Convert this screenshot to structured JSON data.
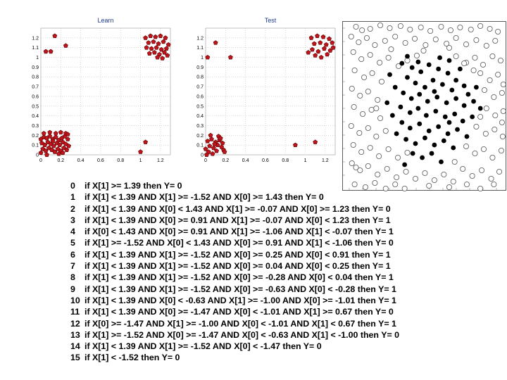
{
  "chart_data": [
    {
      "type": "scatter",
      "title": "Learn",
      "xlim": [
        0,
        1.3
      ],
      "ylim": [
        0,
        1.3
      ],
      "xticks": [
        "0",
        "0.2",
        "0.4",
        "0.6",
        "0.8",
        "1",
        "1.2"
      ],
      "yticks": [
        "0",
        "0.1",
        "0.2",
        "0.3",
        "0.4",
        "0.5",
        "0.6",
        "0.7",
        "0.8",
        "0.9",
        "1",
        "1.1",
        "1.2"
      ],
      "grid": true,
      "series": [
        {
          "color": "#c0141c",
          "points": [
            [
              0.14,
              1.22
            ],
            [
              0.05,
              1.06
            ],
            [
              0.1,
              1.06
            ],
            [
              0.25,
              1.12
            ],
            [
              1.05,
              1.2
            ],
            [
              1.1,
              1.22
            ],
            [
              1.15,
              1.21
            ],
            [
              1.2,
              1.22
            ],
            [
              1.25,
              1.2
            ],
            [
              1.08,
              1.15
            ],
            [
              1.13,
              1.16
            ],
            [
              1.18,
              1.14
            ],
            [
              1.23,
              1.16
            ],
            [
              1.28,
              1.13
            ],
            [
              1.06,
              1.1
            ],
            [
              1.11,
              1.09
            ],
            [
              1.16,
              1.1
            ],
            [
              1.21,
              1.08
            ],
            [
              1.26,
              1.09
            ],
            [
              1.09,
              1.04
            ],
            [
              1.14,
              1.05
            ],
            [
              1.19,
              1.03
            ],
            [
              1.24,
              1.05
            ],
            [
              1.17,
              1.0
            ],
            [
              1.22,
              0.99
            ],
            [
              1.27,
              1.02
            ],
            [
              0.0,
              0.16
            ],
            [
              0.03,
              0.18
            ],
            [
              0.06,
              0.17
            ],
            [
              0.09,
              0.19
            ],
            [
              0.12,
              0.16
            ],
            [
              0.15,
              0.18
            ],
            [
              0.18,
              0.15
            ],
            [
              0.21,
              0.17
            ],
            [
              0.24,
              0.19
            ],
            [
              0.27,
              0.16
            ],
            [
              0.01,
              0.12
            ],
            [
              0.04,
              0.1
            ],
            [
              0.07,
              0.13
            ],
            [
              0.1,
              0.11
            ],
            [
              0.13,
              0.09
            ],
            [
              0.16,
              0.12
            ],
            [
              0.19,
              0.1
            ],
            [
              0.22,
              0.13
            ],
            [
              0.25,
              0.11
            ],
            [
              0.28,
              0.09
            ],
            [
              0.02,
              0.06
            ],
            [
              0.05,
              0.04
            ],
            [
              0.08,
              0.07
            ],
            [
              0.11,
              0.05
            ],
            [
              0.14,
              0.03
            ],
            [
              0.17,
              0.06
            ],
            [
              0.2,
              0.04
            ],
            [
              0.23,
              0.07
            ],
            [
              0.26,
              0.05
            ],
            [
              0.0,
              0.02
            ],
            [
              0.03,
              0.22
            ],
            [
              0.09,
              0.23
            ],
            [
              0.15,
              0.22
            ],
            [
              0.2,
              0.23
            ],
            [
              0.25,
              0.22
            ],
            [
              0.18,
              0.01
            ],
            [
              0.06,
              0.0
            ],
            [
              0.12,
              0.14
            ],
            [
              0.22,
              0.02
            ],
            [
              0.27,
              0.21
            ],
            [
              1.05,
              0.13
            ],
            [
              1.0,
              0.03
            ]
          ]
        }
      ]
    },
    {
      "type": "scatter",
      "title": "Test",
      "xlim": [
        0,
        1.3
      ],
      "ylim": [
        0,
        1.3
      ],
      "xticks": [
        "0",
        "0.2",
        "0.4",
        "0.6",
        "0.8",
        "1",
        "1.2"
      ],
      "yticks": [
        "0",
        "0.1",
        "0.2",
        "0.3",
        "0.4",
        "0.5",
        "0.6",
        "0.7",
        "0.8",
        "0.9",
        "1",
        "1.1",
        "1.2"
      ],
      "grid": true,
      "series": [
        {
          "color": "#c0141c",
          "points": [
            [
              0.1,
              1.15
            ],
            [
              0.02,
              1.0
            ],
            [
              0.25,
              1.0
            ],
            [
              1.06,
              1.2
            ],
            [
              1.12,
              1.22
            ],
            [
              1.18,
              1.21
            ],
            [
              1.24,
              1.19
            ],
            [
              1.09,
              1.14
            ],
            [
              1.15,
              1.15
            ],
            [
              1.21,
              1.13
            ],
            [
              1.27,
              1.15
            ],
            [
              1.07,
              1.08
            ],
            [
              1.13,
              1.06
            ],
            [
              1.19,
              1.09
            ],
            [
              1.25,
              1.07
            ],
            [
              1.1,
              1.02
            ],
            [
              1.16,
              1.0
            ],
            [
              1.22,
              1.03
            ],
            [
              1.03,
              1.05
            ],
            [
              1.28,
              1.1
            ],
            [
              0.02,
              0.14
            ],
            [
              0.06,
              0.16
            ],
            [
              0.1,
              0.13
            ],
            [
              0.14,
              0.15
            ],
            [
              0.04,
              0.09
            ],
            [
              0.08,
              0.07
            ],
            [
              0.12,
              0.1
            ],
            [
              0.16,
              0.08
            ],
            [
              0.03,
              0.03
            ],
            [
              0.07,
              0.01
            ],
            [
              0.11,
              0.04
            ],
            [
              0.18,
              0.05
            ],
            [
              0.05,
              0.2
            ],
            [
              0.13,
              0.19
            ],
            [
              0.17,
              0.12
            ],
            [
              0.0,
              0.06
            ],
            [
              0.15,
              0.17
            ],
            [
              0.19,
              0.03
            ],
            [
              0.09,
              0.11
            ],
            [
              0.01,
              0.0
            ],
            [
              0.9,
              0.1
            ],
            [
              1.1,
              0.13
            ]
          ]
        }
      ]
    }
  ],
  "rules": [
    {
      "idx": "0",
      "text": "if X[1] >= 1.39 then  Y= 0"
    },
    {
      "idx": "1",
      "text": "if X[1] < 1.39 AND X[1] >= -1.52 AND X[0] >= 1.43 then  Y= 0"
    },
    {
      "idx": "2",
      "text": "if X[1] < 1.39 AND X[0] < 1.43 AND X[1] >= -0.07 AND X[0] >= 1.23 then  Y= 0"
    },
    {
      "idx": "3",
      "text": "if X[1] < 1.39 AND X[0] >= 0.91 AND X[1] >= -0.07 AND X[0] < 1.23 then  Y= 1"
    },
    {
      "idx": "4",
      "text": "if X[0] < 1.43 AND X[0] >= 0.91 AND X[1] >= -1.06 AND X[1] < -0.07 then  Y= 1"
    },
    {
      "idx": "5",
      "text": "if X[1] >= -1.52 AND X[0] < 1.43 AND X[0] >= 0.91 AND X[1] < -1.06 then  Y= 0"
    },
    {
      "idx": "6",
      "text": "if X[1] < 1.39 AND X[1] >= -1.52 AND X[0] >= 0.25 AND X[0] < 0.91 then  Y= 1"
    },
    {
      "idx": "7",
      "text": "if X[1] < 1.39 AND X[1] >= -1.52 AND X[0] >= 0.04 AND X[0] < 0.25 then  Y= 1"
    },
    {
      "idx": "8",
      "text": "if X[1] < 1.39 AND X[1] >= -1.52 AND X[0] >= -0.28 AND X[0] < 0.04 then  Y= 1"
    },
    {
      "idx": "9",
      "text": "if X[1] < 1.39 AND X[1] >= -1.52 AND X[0] >= -0.63 AND X[0] < -0.28 then  Y= 1"
    },
    {
      "idx": "10",
      "text": "if X[1] < 1.39 AND X[0] < -0.63 AND X[1] >= -1.00 AND X[0] >= -1.01 then  Y= 1"
    },
    {
      "idx": "11",
      "text": "if X[1] < 1.39 AND X[0] >= -1.47 AND X[0] < -1.01 AND X[1] >= 0.67 then  Y= 0"
    },
    {
      "idx": "12",
      "text": "if X[0] >= -1.47 AND X[1] >= -1.00 AND X[0] < -1.01 AND X[1] < 0.67 then  Y= 1"
    },
    {
      "idx": "13",
      "text": "if X[1] >= -1.52 AND X[0] >= -1.47 AND X[0] < -0.63 AND X[1] < -1.00 then  Y= 0"
    },
    {
      "idx": "14",
      "text": "if X[1] < 1.39 AND X[1] >= -1.52 AND X[0] < -1.47 then  Y= 0"
    },
    {
      "idx": "15",
      "text": "if X[1] < -1.52 then  Y= 0"
    }
  ],
  "scatter_image": {
    "open_color": "#555555",
    "filled_color": "#000000",
    "open_points": [
      [
        12,
        4
      ],
      [
        21,
        9
      ],
      [
        33,
        7
      ],
      [
        48,
        2
      ],
      [
        62,
        6
      ],
      [
        78,
        3
      ],
      [
        92,
        8
      ],
      [
        108,
        5
      ],
      [
        122,
        10
      ],
      [
        138,
        4
      ],
      [
        152,
        9
      ],
      [
        166,
        5
      ],
      [
        182,
        8
      ],
      [
        196,
        3
      ],
      [
        210,
        7
      ],
      [
        222,
        11
      ],
      [
        5,
        18
      ],
      [
        16,
        26
      ],
      [
        28,
        20
      ],
      [
        40,
        30
      ],
      [
        55,
        24
      ],
      [
        70,
        18
      ],
      [
        85,
        27
      ],
      [
        99,
        21
      ],
      [
        115,
        30
      ],
      [
        130,
        22
      ],
      [
        146,
        28
      ],
      [
        160,
        20
      ],
      [
        175,
        29
      ],
      [
        190,
        23
      ],
      [
        205,
        31
      ],
      [
        218,
        24
      ],
      [
        8,
        40
      ],
      [
        20,
        50
      ],
      [
        33,
        44
      ],
      [
        47,
        55
      ],
      [
        60,
        48
      ],
      [
        75,
        60
      ],
      [
        88,
        52
      ],
      [
        102,
        45
      ],
      [
        160,
        46
      ],
      [
        175,
        55
      ],
      [
        188,
        48
      ],
      [
        200,
        58
      ],
      [
        214,
        46
      ],
      [
        226,
        52
      ],
      [
        10,
        66
      ],
      [
        24,
        76
      ],
      [
        36,
        70
      ],
      [
        50,
        82
      ],
      [
        196,
        70
      ],
      [
        210,
        80
      ],
      [
        222,
        72
      ],
      [
        230,
        86
      ],
      [
        6,
        92
      ],
      [
        18,
        102
      ],
      [
        30,
        96
      ],
      [
        44,
        108
      ],
      [
        202,
        94
      ],
      [
        216,
        104
      ],
      [
        228,
        98
      ],
      [
        9,
        118
      ],
      [
        22,
        128
      ],
      [
        35,
        122
      ],
      [
        48,
        134
      ],
      [
        205,
        120
      ],
      [
        218,
        130
      ],
      [
        230,
        124
      ],
      [
        5,
        145
      ],
      [
        17,
        155
      ],
      [
        30,
        148
      ],
      [
        42,
        160
      ],
      [
        56,
        152
      ],
      [
        190,
        146
      ],
      [
        204,
        156
      ],
      [
        217,
        150
      ],
      [
        229,
        160
      ],
      [
        8,
        172
      ],
      [
        20,
        182
      ],
      [
        33,
        176
      ],
      [
        46,
        188
      ],
      [
        60,
        178
      ],
      [
        74,
        190
      ],
      [
        88,
        183
      ],
      [
        175,
        174
      ],
      [
        188,
        184
      ],
      [
        201,
        178
      ],
      [
        214,
        190
      ],
      [
        227,
        180
      ],
      [
        6,
        198
      ],
      [
        18,
        208
      ],
      [
        30,
        202
      ],
      [
        44,
        214
      ],
      [
        58,
        206
      ],
      [
        72,
        218
      ],
      [
        86,
        210
      ],
      [
        100,
        220
      ],
      [
        114,
        212
      ],
      [
        128,
        222
      ],
      [
        142,
        214
      ],
      [
        156,
        224
      ],
      [
        170,
        206
      ],
      [
        184,
        216
      ],
      [
        198,
        208
      ],
      [
        212,
        220
      ],
      [
        224,
        210
      ],
      [
        10,
        228
      ],
      [
        26,
        232
      ],
      [
        40,
        226
      ],
      [
        56,
        234
      ],
      [
        70,
        228
      ],
      [
        84,
        234
      ],
      [
        120,
        230
      ],
      [
        150,
        232
      ],
      [
        176,
        228
      ],
      [
        196,
        234
      ],
      [
        216,
        228
      ],
      [
        172,
        56
      ],
      [
        186,
        66
      ],
      [
        150,
        34
      ],
      [
        112,
        38
      ],
      [
        64,
        36
      ],
      [
        42,
        120
      ],
      [
        196,
        132
      ],
      [
        228,
        140
      ],
      [
        12,
        204
      ],
      [
        158,
        196
      ]
    ],
    "filled_points": [
      [
        80,
        56
      ],
      [
        95,
        62
      ],
      [
        108,
        68
      ],
      [
        120,
        58
      ],
      [
        134,
        64
      ],
      [
        148,
        70
      ],
      [
        160,
        80
      ],
      [
        172,
        88
      ],
      [
        88,
        76
      ],
      [
        100,
        84
      ],
      [
        114,
        90
      ],
      [
        126,
        80
      ],
      [
        140,
        86
      ],
      [
        154,
        94
      ],
      [
        70,
        90
      ],
      [
        82,
        98
      ],
      [
        94,
        106
      ],
      [
        106,
        100
      ],
      [
        118,
        110
      ],
      [
        132,
        104
      ],
      [
        146,
        112
      ],
      [
        160,
        106
      ],
      [
        172,
        116
      ],
      [
        186,
        110
      ],
      [
        78,
        118
      ],
      [
        92,
        126
      ],
      [
        104,
        120
      ],
      [
        116,
        130
      ],
      [
        130,
        124
      ],
      [
        144,
        132
      ],
      [
        158,
        128
      ],
      [
        170,
        138
      ],
      [
        184,
        132
      ],
      [
        66,
        130
      ],
      [
        80,
        140
      ],
      [
        92,
        148
      ],
      [
        106,
        142
      ],
      [
        120,
        152
      ],
      [
        134,
        146
      ],
      [
        148,
        156
      ],
      [
        162,
        150
      ],
      [
        176,
        160
      ],
      [
        72,
        156
      ],
      [
        86,
        164
      ],
      [
        100,
        170
      ],
      [
        114,
        162
      ],
      [
        128,
        172
      ],
      [
        142,
        166
      ],
      [
        156,
        176
      ],
      [
        110,
        190
      ],
      [
        124,
        184
      ],
      [
        138,
        196
      ],
      [
        96,
        184
      ],
      [
        84,
        200
      ],
      [
        150,
        140
      ],
      [
        58,
        112
      ],
      [
        190,
        90
      ],
      [
        178,
        100
      ],
      [
        62,
        72
      ],
      [
        128,
        96
      ],
      [
        104,
        54
      ],
      [
        136,
        48
      ],
      [
        166,
        64
      ],
      [
        88,
        46
      ],
      [
        150,
        52
      ],
      [
        196,
        120
      ]
    ]
  }
}
